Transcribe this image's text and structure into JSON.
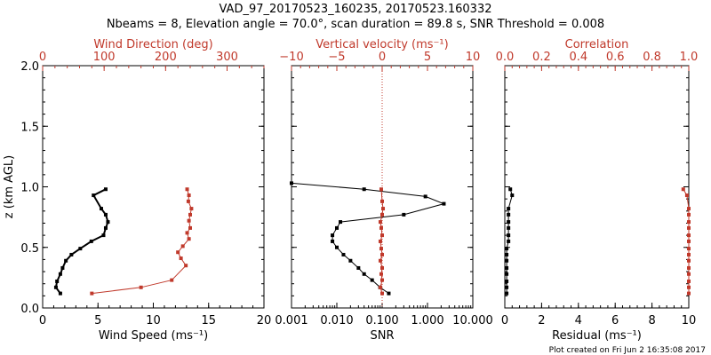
{
  "figure": {
    "title_line1": "VAD_97_20170523_160235, 20170523.160332",
    "title_line2": "Nbeams = 8, Elevation angle = 70.0°, scan duration = 89.8 s, SNR Threshold = 0.008",
    "credit": "Plot created on Fri Jun  2 16:35:08 2017",
    "colors": {
      "primary": "#000000",
      "secondary": "#c0392b"
    }
  },
  "chart_data": [
    {
      "type": "line",
      "name": "wind",
      "ylabel": "z (km AGL)",
      "ylim": [
        0,
        2
      ],
      "yticks": [
        "0.0",
        "0.5",
        "1.0",
        "1.5",
        "2.0"
      ],
      "xlabel_bottom": "Wind Speed (ms⁻¹)",
      "xlim_bottom": [
        0,
        20
      ],
      "xticks_bottom": [
        "0",
        "5",
        "10",
        "15",
        "20"
      ],
      "xlabel_top": "Wind Direction (deg)",
      "xlim_top": [
        0,
        360
      ],
      "xticks_top": [
        "0",
        "100",
        "200",
        "300"
      ],
      "series": [
        {
          "axis": "bottom",
          "color": "#000000",
          "x": [
            1.6,
            1.2,
            1.3,
            1.6,
            1.8,
            2.1,
            2.6,
            3.4,
            4.4,
            5.5,
            5.7,
            5.9,
            5.7,
            5.3,
            4.6,
            5.7
          ],
          "y": [
            0.12,
            0.17,
            0.22,
            0.28,
            0.33,
            0.39,
            0.44,
            0.49,
            0.55,
            0.6,
            0.66,
            0.71,
            0.77,
            0.82,
            0.93,
            0.98
          ]
        },
        {
          "axis": "top",
          "color": "#c0392b",
          "x": [
            80,
            160,
            210,
            233,
            225,
            220,
            228,
            238,
            235,
            240,
            238,
            240,
            242,
            237,
            238,
            235
          ],
          "y": [
            0.12,
            0.17,
            0.23,
            0.35,
            0.41,
            0.46,
            0.51,
            0.57,
            0.62,
            0.66,
            0.72,
            0.77,
            0.82,
            0.88,
            0.93,
            0.98
          ]
        }
      ]
    },
    {
      "type": "line",
      "name": "snr",
      "ylim": [
        0,
        2
      ],
      "xlabel_bottom": "SNR",
      "xscale_bottom": "log",
      "xlim_bottom": [
        0.001,
        10
      ],
      "xticks_bottom": [
        "0.001",
        "0.010",
        "0.100",
        "1.000",
        "10.000"
      ],
      "xlabel_top": "Vertical velocity (ms⁻¹)",
      "xlim_top": [
        -10,
        10
      ],
      "xticks_top": [
        "−10",
        "−5",
        "0",
        "5",
        "10"
      ],
      "zero_line_top": 0,
      "series": [
        {
          "axis": "bottom",
          "color": "#000000",
          "x": [
            0.14,
            0.09,
            0.06,
            0.04,
            0.03,
            0.02,
            0.014,
            0.01,
            0.008,
            0.008,
            0.01,
            0.012,
            0.3,
            2.3,
            0.9,
            0.04,
            0.001
          ],
          "y": [
            0.12,
            0.17,
            0.23,
            0.28,
            0.33,
            0.39,
            0.44,
            0.5,
            0.55,
            0.6,
            0.66,
            0.71,
            0.77,
            0.86,
            0.92,
            0.98,
            1.03
          ]
        },
        {
          "axis": "top",
          "color": "#c0392b",
          "x": [
            0,
            -0.2,
            0,
            -0.1,
            0,
            -0.2,
            0,
            -0.1,
            -0.2,
            0,
            -0.1,
            -0.2,
            0,
            0.1,
            0,
            -0.1
          ],
          "y": [
            0.12,
            0.17,
            0.23,
            0.28,
            0.33,
            0.39,
            0.44,
            0.49,
            0.55,
            0.6,
            0.66,
            0.71,
            0.77,
            0.82,
            0.88,
            0.98
          ]
        }
      ]
    },
    {
      "type": "line",
      "name": "residual",
      "ylim": [
        0,
        2
      ],
      "xlabel_bottom": "Residual (ms⁻¹)",
      "xlim_bottom": [
        0,
        10
      ],
      "xticks_bottom": [
        "0",
        "2",
        "4",
        "6",
        "8",
        "10"
      ],
      "xlabel_top": "Correlation",
      "xlim_top": [
        0,
        1
      ],
      "xticks_top": [
        "0.0",
        "0.2",
        "0.4",
        "0.6",
        "0.8",
        "1.0"
      ],
      "series": [
        {
          "axis": "bottom",
          "color": "#000000",
          "x": [
            0.1,
            0.1,
            0.1,
            0.1,
            0.1,
            0.1,
            0.1,
            0.1,
            0.2,
            0.2,
            0.2,
            0.2,
            0.2,
            0.2,
            0.4,
            0.3
          ],
          "y": [
            0.12,
            0.17,
            0.22,
            0.28,
            0.33,
            0.39,
            0.44,
            0.49,
            0.55,
            0.6,
            0.66,
            0.71,
            0.77,
            0.82,
            0.93,
            0.98
          ]
        },
        {
          "axis": "top",
          "color": "#c0392b",
          "x": [
            1.0,
            1.0,
            1.0,
            1.0,
            1.0,
            1.0,
            1.0,
            1.0,
            1.0,
            1.0,
            1.0,
            1.0,
            1.0,
            1.0,
            0.99,
            0.97
          ],
          "y": [
            0.12,
            0.17,
            0.22,
            0.28,
            0.33,
            0.39,
            0.44,
            0.49,
            0.55,
            0.6,
            0.66,
            0.71,
            0.77,
            0.82,
            0.93,
            0.98
          ]
        }
      ]
    }
  ]
}
